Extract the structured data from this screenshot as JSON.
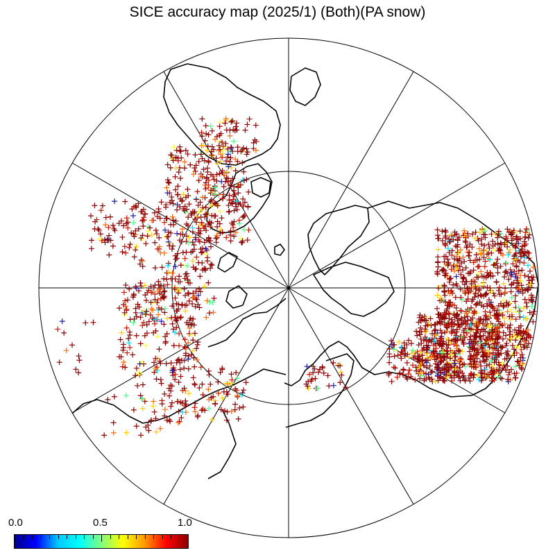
{
  "title": "SICE accuracy map (2025/1) (Both)(PA snow)",
  "colorbar": {
    "min_label": "0.0",
    "mid_label": "0.5",
    "max_label": "1.0",
    "min": 0.0,
    "max": 1.0,
    "colors": [
      "#00008b",
      "#0000ff",
      "#00c8ff",
      "#00ffff",
      "#7fff7f",
      "#ffff00",
      "#ff9900",
      "#ff0000",
      "#8b0000"
    ]
  },
  "map": {
    "projection": "north polar stereographic",
    "meridian_lines": 12,
    "latitude_circle": true,
    "marker": "+"
  },
  "colors": {
    "coastline": "#000000",
    "grid": "#000000",
    "high_accuracy": "#8b0000"
  }
}
